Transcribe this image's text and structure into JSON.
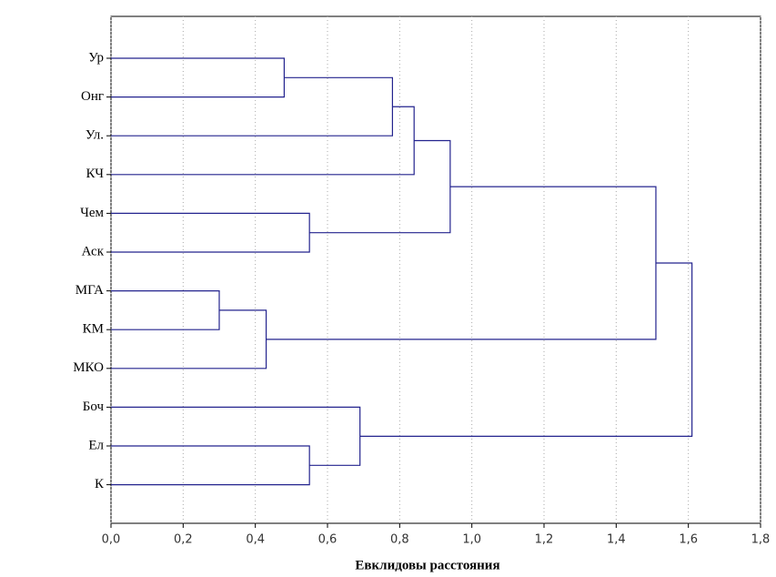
{
  "chart_data": {
    "type": "dendrogram",
    "x_label": "Евклидовы расстояния",
    "leaves": [
      "Ур",
      "Онг",
      "Ул.",
      "КЧ",
      "Чем",
      "Аск",
      "МГА",
      "КМ",
      "МКО",
      "Боч",
      "Ел",
      "К"
    ],
    "merges": [
      {
        "left": 0,
        "right": 1,
        "distance": 0.48
      },
      {
        "left": 12,
        "right": 2,
        "distance": 0.78
      },
      {
        "left": 13,
        "right": 3,
        "distance": 0.84
      },
      {
        "left": 4,
        "right": 5,
        "distance": 0.55
      },
      {
        "left": 14,
        "right": 15,
        "distance": 0.94
      },
      {
        "left": 6,
        "right": 7,
        "distance": 0.3
      },
      {
        "left": 17,
        "right": 8,
        "distance": 0.43
      },
      {
        "left": 16,
        "right": 18,
        "distance": 1.51
      },
      {
        "left": 10,
        "right": 11,
        "distance": 0.55
      },
      {
        "left": 9,
        "right": 20,
        "distance": 0.69
      },
      {
        "left": 19,
        "right": 21,
        "distance": 1.61
      }
    ],
    "color": "#23238e",
    "xlim": [
      0,
      1.8
    ],
    "xticks": [
      {
        "value": 0,
        "label": "0,0"
      },
      {
        "value": 0.2,
        "label": "0,2"
      },
      {
        "value": 0.4,
        "label": "0,4"
      },
      {
        "value": 0.6,
        "label": "0,6"
      },
      {
        "value": 0.8,
        "label": "0,8"
      },
      {
        "value": 1.0,
        "label": "1,0"
      },
      {
        "value": 1.2,
        "label": "1,2"
      },
      {
        "value": 1.4,
        "label": "1,4"
      },
      {
        "value": 1.6,
        "label": "1,6"
      },
      {
        "value": 1.8,
        "label": "1,8"
      }
    ],
    "grid": true
  }
}
